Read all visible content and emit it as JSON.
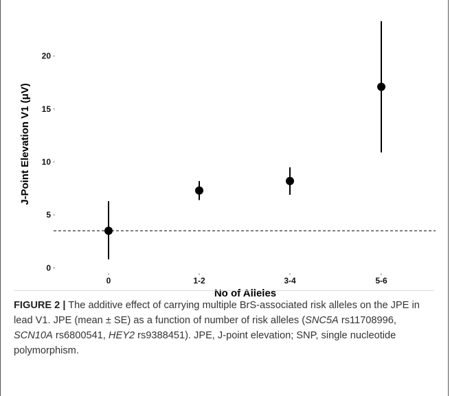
{
  "chart_data": {
    "type": "scatter",
    "xlabel": "No of Alleles",
    "ylabel": "J-Point Elevation V1 (μV)",
    "categories": [
      "0",
      "1-2",
      "3-4",
      "5-6"
    ],
    "series": [
      {
        "points": [
          {
            "x": "0",
            "mean": 3.5,
            "lower": 0.8,
            "upper": 6.3
          },
          {
            "x": "1-2",
            "mean": 7.3,
            "lower": 6.4,
            "upper": 8.2
          },
          {
            "x": "3-4",
            "mean": 8.2,
            "lower": 6.9,
            "upper": 9.5
          },
          {
            "x": "5-6",
            "mean": 17.1,
            "lower": 10.9,
            "upper": 23.3
          }
        ]
      }
    ],
    "yticks": [
      0,
      5,
      10,
      15,
      20
    ],
    "ylim": [
      -0.5,
      24
    ],
    "reference_line": {
      "y": 3.5,
      "style": "dashed"
    },
    "grid": false
  },
  "caption": {
    "label": "FIGURE 2 |",
    "segments": [
      {
        "text": " The additive effect of carrying multiple BrS-associated risk alleles on the JPE in lead V1. JPE (mean ± SE) as a function of number of risk alleles (",
        "italic": false
      },
      {
        "text": "SNC5A",
        "italic": true
      },
      {
        "text": " rs11708996, ",
        "italic": false
      },
      {
        "text": "SCN10A",
        "italic": true
      },
      {
        "text": " rs6800541, ",
        "italic": false
      },
      {
        "text": "HEY2",
        "italic": true
      },
      {
        "text": " rs9388451). JPE, J-point elevation; SNP, single nucleotide polymorphism.",
        "italic": false
      }
    ]
  }
}
